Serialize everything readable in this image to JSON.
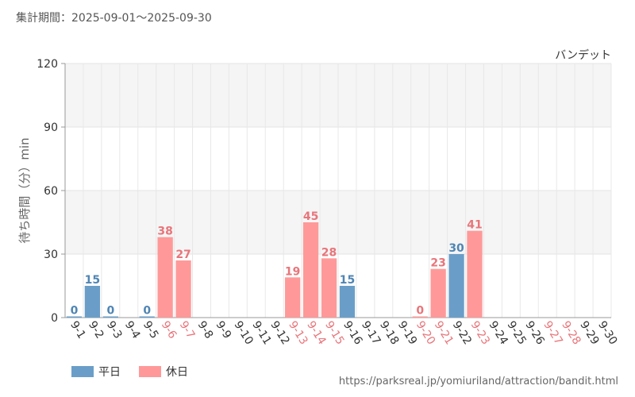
{
  "header": {
    "period": "集計期間：2025-09-01〜2025-09-30"
  },
  "colors": {
    "weekday": "#6a9ec8",
    "holiday": "#ff9999",
    "holiday_label": "#e8757a",
    "weekday_label": "#4f85b4"
  },
  "legend": {
    "weekday": "平日",
    "holiday": "休日"
  },
  "footer": {
    "url": "https://parksreal.jp/yomiuriland/attraction/bandit.html"
  },
  "chart_data": {
    "type": "bar",
    "title": "バンデット",
    "ylabel": "待ち時間（分）min",
    "xlabel": "",
    "ylim": [
      0,
      120
    ],
    "yticks": [
      0,
      30,
      60,
      90,
      120
    ],
    "categories": [
      "9-1",
      "9-2",
      "9-3",
      "9-4",
      "9-5",
      "9-6",
      "9-7",
      "9-8",
      "9-9",
      "9-10",
      "9-11",
      "9-12",
      "9-13",
      "9-14",
      "9-15",
      "9-16",
      "9-17",
      "9-18",
      "9-19",
      "9-20",
      "9-21",
      "9-22",
      "9-23",
      "9-24",
      "9-25",
      "9-26",
      "9-27",
      "9-28",
      "9-29",
      "9-30"
    ],
    "values": [
      0,
      15,
      0,
      null,
      0,
      38,
      27,
      null,
      null,
      null,
      null,
      null,
      19,
      45,
      28,
      15,
      null,
      null,
      null,
      0,
      23,
      30,
      41,
      null,
      null,
      null,
      null,
      null,
      null,
      null
    ],
    "day_type": [
      "weekday",
      "weekday",
      "weekday",
      "weekday",
      "weekday",
      "holiday",
      "holiday",
      "weekday",
      "weekday",
      "weekday",
      "weekday",
      "weekday",
      "holiday",
      "holiday",
      "holiday",
      "weekday",
      "weekday",
      "weekday",
      "weekday",
      "holiday",
      "holiday",
      "weekday",
      "holiday",
      "weekday",
      "weekday",
      "weekday",
      "holiday",
      "holiday",
      "weekday",
      "weekday"
    ],
    "series": [
      {
        "name": "平日"
      },
      {
        "name": "休日"
      }
    ]
  }
}
